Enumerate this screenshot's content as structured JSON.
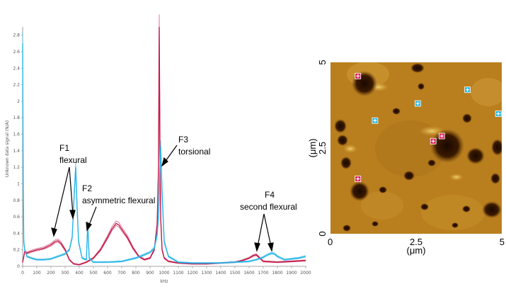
{
  "chart_data": [
    {
      "type": "line",
      "xlabel": "kHz",
      "ylabel": "Unknown data signal (N/A)",
      "xlim": [
        0,
        2000
      ],
      "ylim": [
        0,
        2.9
      ],
      "x_ticks": [
        "0",
        "100",
        "200",
        "300",
        "400",
        "500",
        "600",
        "700",
        "800",
        "900",
        "1000",
        "1100",
        "1200",
        "1300",
        "1400",
        "1500",
        "1600",
        "1700",
        "1800",
        "1900",
        "2000"
      ],
      "y_ticks": [
        "0",
        "0.2",
        "0.4",
        "0.6",
        "0.8",
        "1",
        "1.2",
        "1.4",
        "1.6",
        "1.8",
        "2",
        "2.2",
        "2.4",
        "2.6",
        "2.8"
      ],
      "series": [
        {
          "color": "#c41a4a",
          "x": [
            0,
            15,
            30,
            60,
            100,
            150,
            200,
            230,
            250,
            270,
            300,
            330,
            360,
            400,
            450,
            500,
            550,
            600,
            630,
            660,
            680,
            700,
            740,
            780,
            820,
            860,
            900,
            930,
            950,
            960,
            965,
            970,
            975,
            985,
            1000,
            1030,
            1100,
            1200,
            1300,
            1400,
            1500,
            1550,
            1600,
            1630,
            1650,
            1670,
            1700,
            1800,
            1900,
            2000
          ],
          "y": [
            0.05,
            0.18,
            0.16,
            0.18,
            0.2,
            0.22,
            0.26,
            0.3,
            0.31,
            0.28,
            0.2,
            0.08,
            0.03,
            0.02,
            0.05,
            0.1,
            0.2,
            0.35,
            0.45,
            0.52,
            0.5,
            0.45,
            0.35,
            0.22,
            0.12,
            0.08,
            0.1,
            0.2,
            0.5,
            1.2,
            2.9,
            1.5,
            0.6,
            0.2,
            0.1,
            0.06,
            0.04,
            0.03,
            0.03,
            0.04,
            0.05,
            0.07,
            0.1,
            0.13,
            0.14,
            0.11,
            0.06,
            0.05,
            0.06,
            0.07
          ]
        },
        {
          "color": "#29b5e8",
          "x": [
            0,
            4,
            8,
            15,
            30,
            60,
            100,
            150,
            200,
            250,
            300,
            330,
            350,
            365,
            375,
            385,
            395,
            420,
            450,
            460,
            470,
            500,
            600,
            700,
            800,
            860,
            900,
            930,
            950,
            960,
            975,
            985,
            1000,
            1030,
            1100,
            1200,
            1300,
            1400,
            1500,
            1600,
            1650,
            1700,
            1730,
            1760,
            1780,
            1800,
            1850,
            1900,
            1950,
            2000
          ],
          "y": [
            2.7,
            1.0,
            0.3,
            0.2,
            0.12,
            0.1,
            0.08,
            0.08,
            0.09,
            0.12,
            0.15,
            0.2,
            0.35,
            0.9,
            1.2,
            0.7,
            0.3,
            0.1,
            0.08,
            0.52,
            0.1,
            0.05,
            0.05,
            0.06,
            0.1,
            0.14,
            0.17,
            0.22,
            0.38,
            0.6,
            1.45,
            0.9,
            0.3,
            0.12,
            0.05,
            0.04,
            0.04,
            0.04,
            0.05,
            0.06,
            0.08,
            0.11,
            0.14,
            0.16,
            0.15,
            0.12,
            0.08,
            0.09,
            0.1,
            0.12
          ]
        }
      ],
      "annotations": [
        {
          "label": "F1",
          "sub": "flexural"
        },
        {
          "label": "F2",
          "sub": "asymmetric flexural"
        },
        {
          "label": "F3",
          "sub": "torsional"
        },
        {
          "label": "F4",
          "sub": "second flexural"
        }
      ]
    },
    {
      "type": "heatmap",
      "description_type": "AFM topography map",
      "xlabel": "(μm)",
      "ylabel": "(μm)",
      "xlim": [
        0,
        5
      ],
      "ylim": [
        0,
        5
      ],
      "x_ticks": [
        "0",
        "2.5",
        "5"
      ],
      "y_ticks": [
        "0",
        "2.5",
        "5"
      ],
      "markers": [
        {
          "kind": "red",
          "x": 0.8,
          "y": 4.6
        },
        {
          "kind": "red",
          "x": 0.8,
          "y": 1.6
        },
        {
          "kind": "red",
          "x": 3.0,
          "y": 2.7
        },
        {
          "kind": "red",
          "x": 3.25,
          "y": 2.85
        },
        {
          "kind": "cyan",
          "x": 1.3,
          "y": 3.3
        },
        {
          "kind": "cyan",
          "x": 2.55,
          "y": 3.8
        },
        {
          "kind": "cyan",
          "x": 4.0,
          "y": 4.2
        },
        {
          "kind": "cyan",
          "x": 4.9,
          "y": 3.5
        }
      ]
    }
  ]
}
